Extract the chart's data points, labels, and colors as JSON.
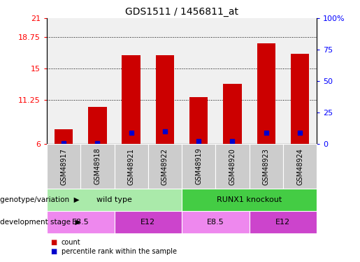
{
  "title": "GDS1511 / 1456811_at",
  "samples": [
    "GSM48917",
    "GSM48918",
    "GSM48921",
    "GSM48922",
    "GSM48919",
    "GSM48920",
    "GSM48923",
    "GSM48924"
  ],
  "count_values": [
    7.8,
    10.4,
    16.6,
    16.6,
    11.6,
    13.2,
    18.0,
    16.8
  ],
  "percentile_values": [
    0.5,
    0.5,
    9.0,
    10.0,
    2.5,
    2.5,
    9.0,
    9.0
  ],
  "ylim_left": [
    6,
    21
  ],
  "yticks_left": [
    6,
    11.25,
    15,
    18.75,
    21
  ],
  "ytick_labels_left": [
    "6",
    "11.25",
    "15",
    "18.75",
    "21"
  ],
  "ylim_right": [
    0,
    100
  ],
  "yticks_right": [
    0,
    25,
    50,
    75,
    100
  ],
  "ytick_labels_right": [
    "0",
    "25",
    "50",
    "75",
    "100%"
  ],
  "bar_color": "#cc0000",
  "percentile_color": "#0000cc",
  "grid_dotted_ticks": [
    11.25,
    15,
    18.75
  ],
  "genotype_groups": [
    {
      "label": "wild type",
      "start": 0,
      "end": 4,
      "color": "#aaeaaa"
    },
    {
      "label": "RUNX1 knockout",
      "start": 4,
      "end": 8,
      "color": "#44cc44"
    }
  ],
  "stage_groups": [
    {
      "label": "E8.5",
      "start": 0,
      "end": 2,
      "color": "#ee88ee"
    },
    {
      "label": "E12",
      "start": 2,
      "end": 4,
      "color": "#cc44cc"
    },
    {
      "label": "E8.5",
      "start": 4,
      "end": 6,
      "color": "#ee88ee"
    },
    {
      "label": "E12",
      "start": 6,
      "end": 8,
      "color": "#cc44cc"
    }
  ],
  "legend_count_label": "count",
  "legend_pct_label": "percentile rank within the sample",
  "genotype_label": "genotype/variation",
  "stage_label": "development stage",
  "bar_width": 0.55,
  "sample_box_color": "#cccccc",
  "fig_width": 5.15,
  "fig_height": 3.75,
  "dpi": 100
}
